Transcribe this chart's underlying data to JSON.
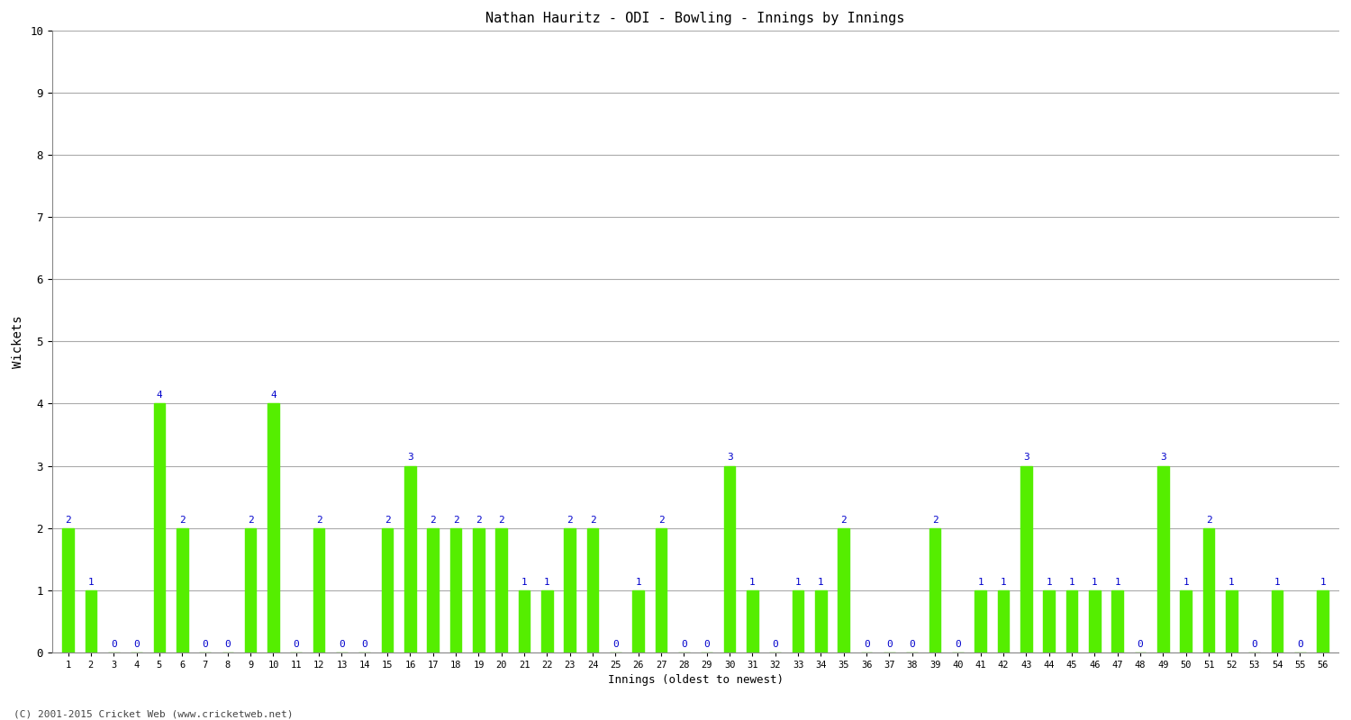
{
  "title": "Nathan Hauritz - ODI - Bowling - Innings by Innings",
  "xlabel": "Innings (oldest to newest)",
  "ylabel": "Wickets",
  "bar_color": "#55ee00",
  "label_color": "#0000cc",
  "background_color": "#ffffff",
  "grid_color": "#aaaaaa",
  "ylim": [
    0,
    10
  ],
  "yticks": [
    0,
    1,
    2,
    3,
    4,
    5,
    6,
    7,
    8,
    9,
    10
  ],
  "innings": [
    1,
    2,
    3,
    4,
    5,
    6,
    7,
    8,
    9,
    10,
    11,
    12,
    13,
    14,
    15,
    16,
    17,
    18,
    19,
    20,
    21,
    22,
    23,
    24,
    25,
    26,
    27,
    28,
    29,
    30,
    31,
    32,
    33,
    34,
    35,
    36,
    37,
    38,
    39,
    40,
    41,
    42,
    43,
    44,
    45,
    46,
    47,
    48,
    49,
    50,
    51,
    52,
    53,
    54,
    55,
    56
  ],
  "wickets": [
    2,
    1,
    0,
    0,
    4,
    2,
    0,
    0,
    2,
    4,
    0,
    2,
    0,
    0,
    2,
    3,
    2,
    2,
    2,
    2,
    1,
    1,
    2,
    2,
    0,
    1,
    2,
    0,
    0,
    3,
    1,
    0,
    1,
    1,
    2,
    0,
    0,
    0,
    2,
    0,
    1,
    1,
    3,
    1,
    1,
    1,
    1,
    0,
    3,
    1,
    2,
    1,
    0,
    1,
    0,
    1
  ],
  "footer": "(C) 2001-2015 Cricket Web (www.cricketweb.net)",
  "bar_width": 0.5
}
